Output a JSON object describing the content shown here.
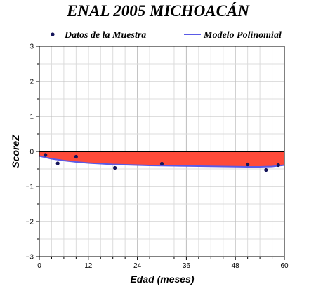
{
  "chart_data": {
    "type": "scatter",
    "title": "ENAL 2005 MICHOACÁN",
    "xlabel": "Edad (meses)",
    "ylabel": "ScoreZ",
    "xlim": [
      0,
      60
    ],
    "ylim": [
      -3,
      3
    ],
    "xticks": [
      "0",
      "12",
      "24",
      "36",
      "48",
      "60"
    ],
    "yticks": [
      "3",
      "2",
      "1",
      "0",
      "−1",
      "−2",
      "−3"
    ],
    "grid": true,
    "legend_position": "top",
    "series": [
      {
        "name": "Datos de la Muestra",
        "kind": "scatter",
        "color": "#14145a",
        "x": [
          1.5,
          4.5,
          9,
          18.5,
          30,
          51,
          55.5,
          58.5
        ],
        "y": [
          -0.1,
          -0.34,
          -0.15,
          -0.47,
          -0.35,
          -0.37,
          -0.53,
          -0.39
        ]
      },
      {
        "name": "Modelo Polinomial",
        "kind": "line",
        "color": "#5a5ae6",
        "x": [
          0,
          3,
          6,
          9,
          12,
          15,
          18,
          21,
          24,
          27,
          30,
          33,
          36,
          39,
          42,
          45,
          48,
          51,
          54,
          57,
          60
        ],
        "y": [
          -0.13,
          -0.21,
          -0.26,
          -0.3,
          -0.33,
          -0.35,
          -0.37,
          -0.38,
          -0.39,
          -0.4,
          -0.405,
          -0.41,
          -0.415,
          -0.42,
          -0.425,
          -0.43,
          -0.435,
          -0.44,
          -0.44,
          -0.43,
          -0.39
        ]
      }
    ],
    "fill_color": "#ff4b3a"
  }
}
